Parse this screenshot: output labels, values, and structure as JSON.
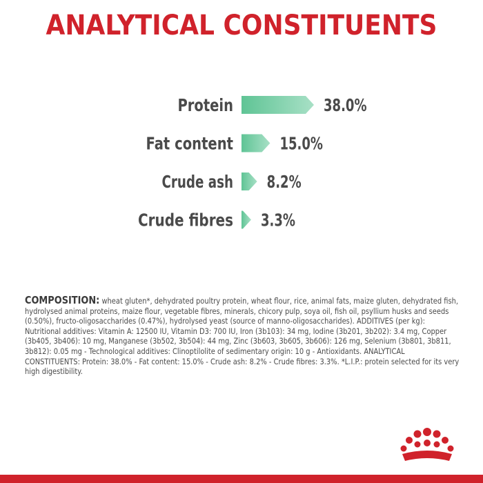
{
  "title": "ANALYTICAL CONSTITUENTS",
  "chart_data": {
    "type": "bar",
    "categories": [
      "Protein",
      "Fat content",
      "Crude ash",
      "Crude fibres"
    ],
    "values": [
      38.0,
      15.0,
      8.2,
      3.3
    ],
    "value_labels": [
      "38.0%",
      "15.0%",
      "8.2%",
      "3.3%"
    ],
    "xlabel": "",
    "ylabel": "",
    "grid": false,
    "colors": {
      "bar_light": "#a8e0c6",
      "bar_dark": "#5fc495",
      "text": "#4a4a4a"
    }
  },
  "composition": {
    "lead": "COMPOSITION:",
    "text": " wheat gluten*, dehydrated poultry protein, wheat flour, rice, animal fats, maize gluten, dehydrated fish, hydrolysed animal proteins, maize flour, vegetable fibres, minerals, chicory pulp, soya oil, fish oil, psyllium husks and seeds (0.50%), fructo-oligosaccharides (0.47%), hydrolysed yeast (source of manno-oligosaccharides). ADDITIVES (per kg): Nutritional additives: Vitamin A: 12500 IU, Vitamin D3: 700 IU, Iron (3b103): 34 mg, Iodine (3b201, 3b202): 3.4 mg, Copper (3b405, 3b406): 10 mg, Manganese (3b502, 3b504): 44 mg, Zinc (3b603, 3b605, 3b606): 126 mg, Selenium (3b801, 3b811, 3b812): 0.05 mg - Technological additives: Clinoptilolite of sedimentary origin: 10 g - Antioxidants. ANALYTICAL CONSTITUENTS: Protein: 38.0% - Fat content: 15.0% - Crude ash: 8.2% - Crude fibres: 3.3%. *L.I.P.: protein selected for its very high digestibility."
  },
  "brand": {
    "logo_icon": "crown-icon",
    "color": "#d0222b"
  }
}
